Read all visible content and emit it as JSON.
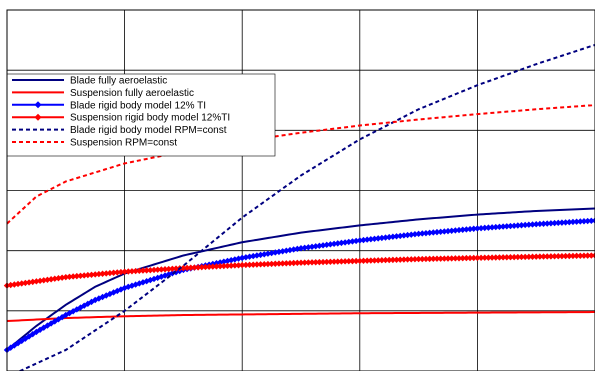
{
  "chart_data": {
    "type": "line",
    "title": "",
    "xlabel": "",
    "ylabel": "",
    "grid": true,
    "legend_position": "left",
    "xlim": [
      0,
      5
    ],
    "ylim": [
      0,
      6
    ],
    "legend": [
      "Blade fully aeroelastic",
      "Suspension fully aeroelastic",
      "Blade rigid body model 12% TI",
      "Suspension rigid body model 12%TI",
      "Blade rigid body model RPM=const",
      "Suspension RPM=const"
    ],
    "series": [
      {
        "name": "Blade fully aeroelastic",
        "color": "#000080",
        "style": "solid",
        "x": [
          0,
          0.25,
          0.5,
          0.75,
          1,
          1.5,
          2,
          2.5,
          3,
          3.5,
          4,
          4.5,
          5
        ],
        "y": [
          0.35,
          0.75,
          1.1,
          1.4,
          1.62,
          1.92,
          2.14,
          2.3,
          2.42,
          2.52,
          2.6,
          2.66,
          2.7
        ]
      },
      {
        "name": "Suspension fully aeroelastic",
        "color": "#ff0000",
        "style": "solid",
        "x": [
          0,
          0.5,
          1,
          1.5,
          2,
          2.5,
          3,
          3.5,
          4,
          4.5,
          5
        ],
        "y": [
          0.83,
          0.88,
          0.91,
          0.93,
          0.94,
          0.95,
          0.96,
          0.965,
          0.97,
          0.975,
          0.98
        ]
      },
      {
        "name": "Blade rigid body model 12% TI",
        "color": "#0000ff",
        "style": "diamond-markers",
        "x": [
          0,
          0.25,
          0.5,
          0.75,
          1,
          1.5,
          2,
          2.5,
          3,
          3.5,
          4,
          4.5,
          5
        ],
        "y": [
          0.35,
          0.65,
          0.93,
          1.18,
          1.38,
          1.68,
          1.88,
          2.04,
          2.17,
          2.28,
          2.37,
          2.44,
          2.5
        ]
      },
      {
        "name": "Suspension rigid body model 12%TI",
        "color": "#ff0000",
        "style": "diamond-markers",
        "x": [
          0,
          0.5,
          1,
          1.5,
          2,
          2.5,
          3,
          3.5,
          4,
          4.5,
          5
        ],
        "y": [
          1.42,
          1.56,
          1.65,
          1.71,
          1.76,
          1.8,
          1.83,
          1.86,
          1.88,
          1.9,
          1.92
        ]
      },
      {
        "name": "Blade rigid body model RPM=const",
        "color": "#000080",
        "style": "dashed",
        "x": [
          0,
          0.5,
          1,
          1.5,
          2,
          2.5,
          3,
          3.5,
          4,
          4.5,
          5
        ],
        "y": [
          -0.1,
          0.35,
          1.0,
          1.75,
          2.55,
          3.25,
          3.85,
          4.35,
          4.75,
          5.1,
          5.42
        ]
      },
      {
        "name": "Suspension RPM=const",
        "color": "#ff0000",
        "style": "dashed",
        "x": [
          0,
          0.25,
          0.5,
          1,
          1.5,
          2,
          2.5,
          3,
          3.5,
          4,
          4.5,
          5
        ],
        "y": [
          2.45,
          2.9,
          3.15,
          3.45,
          3.65,
          3.82,
          3.96,
          4.08,
          4.18,
          4.27,
          4.35,
          4.42
        ]
      }
    ]
  }
}
